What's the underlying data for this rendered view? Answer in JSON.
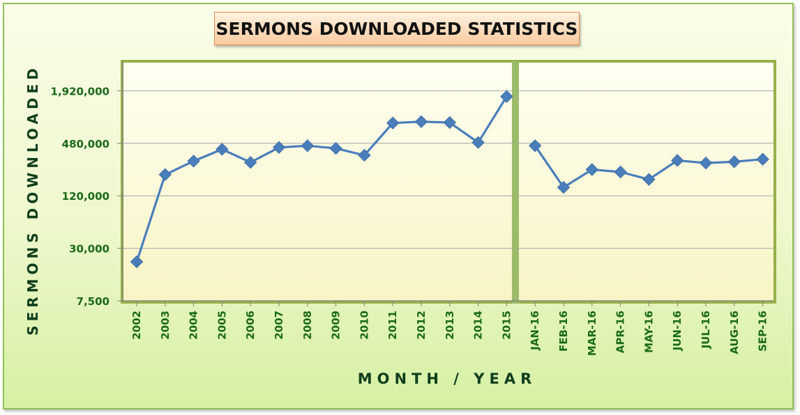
{
  "chart_data": {
    "type": "line",
    "title": "SERMONS DOWNLOADED STATISTICS",
    "xlabel": "MONTH / YEAR",
    "ylabel": "SERMONS DOWNLOADED",
    "y_scale": "log",
    "ylim": [
      7500,
      3800000
    ],
    "yticks": [
      7500,
      30000,
      120000,
      480000,
      1920000
    ],
    "ytick_labels": [
      "7,500",
      "30,000",
      "120,000",
      "480,000",
      "1,920,000"
    ],
    "grid": true,
    "legend": "none",
    "line_color": "#4a7ebb",
    "panels": [
      {
        "name": "",
        "categories": [
          "2002",
          "2003",
          "2004",
          "2005",
          "2006",
          "2007",
          "2008",
          "2009",
          "2010",
          "2011",
          "2012",
          "2013",
          "2014",
          "2015"
        ],
        "values": [
          21000,
          210000,
          300000,
          410000,
          290000,
          430000,
          450000,
          420000,
          350000,
          820000,
          850000,
          830000,
          490000,
          1650000
        ]
      },
      {
        "name": "",
        "categories": [
          "JAN-16",
          "FEB-16",
          "MAR-16",
          "APR-16",
          "MAY-16",
          "JUN-16",
          "JUL-16",
          "AUG-16",
          "SEP-16"
        ],
        "values": [
          450000,
          150000,
          240000,
          225000,
          185000,
          305000,
          285000,
          295000,
          315000
        ]
      }
    ]
  }
}
